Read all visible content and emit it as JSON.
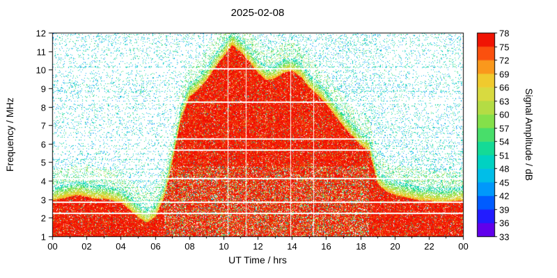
{
  "figure": {
    "title": "2025-02-08",
    "background_color": "#ffffff",
    "frame_color": "#000000",
    "x_axis": {
      "label": "UT Time / hrs",
      "tick_values": [
        0,
        2,
        4,
        6,
        8,
        10,
        12,
        14,
        16,
        18,
        20,
        22,
        24
      ],
      "tick_labels": [
        "00",
        "02",
        "04",
        "06",
        "08",
        "10",
        "12",
        "14",
        "16",
        "18",
        "20",
        "22",
        "00"
      ],
      "minor_tick_values": [
        1,
        3,
        5,
        7,
        9,
        11,
        13,
        15,
        17,
        19,
        21,
        23
      ]
    },
    "y_axis": {
      "label": "Frequency / MHz",
      "tick_values": [
        1,
        2,
        3,
        4,
        5,
        6,
        7,
        8,
        9,
        10,
        11,
        12
      ]
    },
    "colorbar": {
      "label": "Signal Amplitude / dB",
      "min": 33,
      "max": 78,
      "tick_values": [
        33,
        36,
        39,
        42,
        45,
        48,
        51,
        54,
        57,
        60,
        63,
        66,
        69,
        72,
        75,
        78
      ]
    }
  },
  "chart_data": {
    "type": "heatmap",
    "title": "2025-02-08",
    "xlabel": "UT Time / hrs",
    "ylabel": "Frequency / MHz",
    "zlabel": "Signal Amplitude / dB",
    "x_range_hours": [
      0,
      24
    ],
    "y_range_mhz": [
      1,
      12
    ],
    "z_range_db": [
      33,
      78
    ],
    "legend_position": "colorbar-right",
    "grid": false,
    "envelope": {
      "description": "Upper frequency edge (MHz) of the saturated high-amplitude (~75-78 dB, red) region vs UT hour",
      "hours": [
        0,
        0.5,
        1,
        1.5,
        2,
        2.5,
        3,
        3.5,
        4,
        4.5,
        5,
        5.5,
        6,
        6.5,
        7,
        7.5,
        8,
        8.5,
        9,
        9.5,
        10,
        10.5,
        11,
        11.5,
        12,
        12.5,
        13,
        13.5,
        14,
        14.5,
        15,
        15.5,
        16,
        16.5,
        17,
        17.5,
        18,
        18.5,
        19,
        19.5,
        20,
        20.5,
        21,
        21.5,
        22,
        22.5,
        23,
        23.5,
        24
      ],
      "max_freq_mhz": [
        3.4,
        3.5,
        3.6,
        3.7,
        3.6,
        3.5,
        3.5,
        3.4,
        3.3,
        2.9,
        2.5,
        2.2,
        2.5,
        3.5,
        5.5,
        7.8,
        9.0,
        9.4,
        9.9,
        10.6,
        11.2,
        11.8,
        11.4,
        10.9,
        10.3,
        9.9,
        10.0,
        10.3,
        10.4,
        10.1,
        9.5,
        9.1,
        8.6,
        8.0,
        7.4,
        6.9,
        6.4,
        6.1,
        4.3,
        3.9,
        3.7,
        3.6,
        3.5,
        3.4,
        3.4,
        3.3,
        3.3,
        3.4,
        3.4
      ]
    },
    "protected_frequency_lines_mhz": [
      2.25,
      2.85,
      4.1,
      5.65,
      6.25,
      8.25,
      10.05
    ],
    "data_gap_times_hours": [
      10.25,
      11.3,
      13.9,
      15.25
    ],
    "speckle_amplitude_db": [
      42,
      56
    ],
    "high_amplitude_db": [
      73,
      78
    ],
    "colormap": [
      {
        "db": 33,
        "color": "#7e00d8"
      },
      {
        "db": 36,
        "color": "#4400ff"
      },
      {
        "db": 39,
        "color": "#0038ff"
      },
      {
        "db": 42,
        "color": "#0080ff"
      },
      {
        "db": 45,
        "color": "#00b0f8"
      },
      {
        "db": 48,
        "color": "#00ccd8"
      },
      {
        "db": 51,
        "color": "#00d8ac"
      },
      {
        "db": 54,
        "color": "#28dc80"
      },
      {
        "db": 57,
        "color": "#68e054"
      },
      {
        "db": 60,
        "color": "#a0e040"
      },
      {
        "db": 63,
        "color": "#c8d848"
      },
      {
        "db": 66,
        "color": "#e8dc38"
      },
      {
        "db": 69,
        "color": "#f8b824"
      },
      {
        "db": 72,
        "color": "#fc7814"
      },
      {
        "db": 75,
        "color": "#f92808"
      },
      {
        "db": 78,
        "color": "#e80000"
      }
    ],
    "notes": [
      "Solid high-amplitude (red) band fills 1 MHz up to the envelope at all times",
      "Scattered cyan/teal speckle (~42-56 dB) over the rest of the plot on white background",
      "Thin horizontal white lines are blanked/protected frequencies",
      "Red region peaks near 11.8 MHz around 10:30 UT and collapses to ~4 MHz after 19:00 UT"
    ]
  }
}
